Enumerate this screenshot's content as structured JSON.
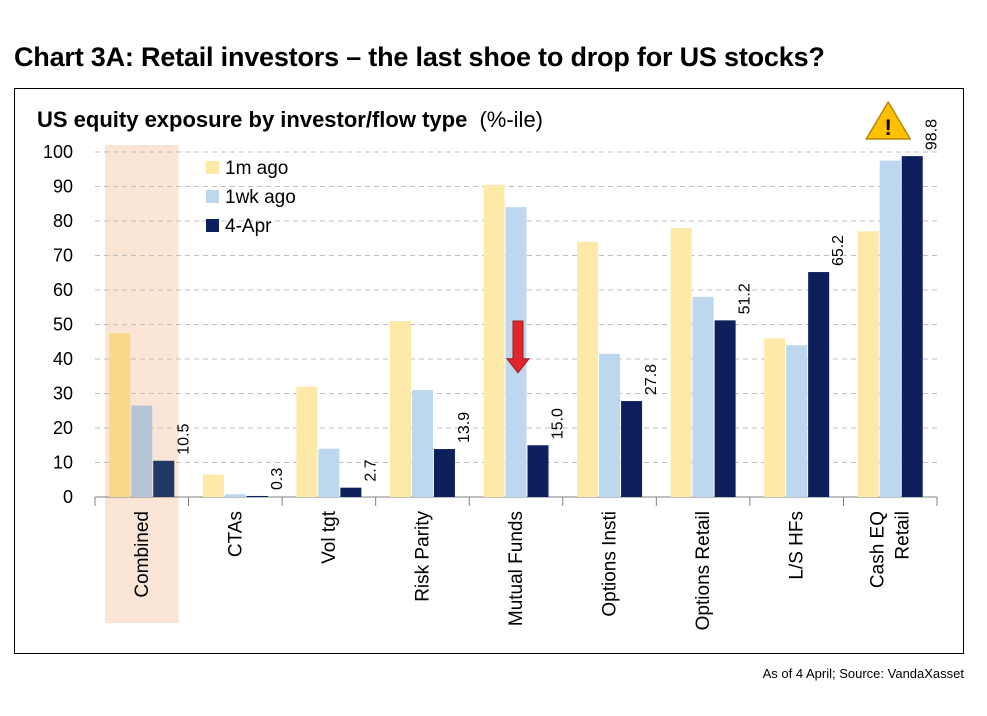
{
  "page": {
    "title": "Chart 3A: Retail investors – the last shoe to drop for US stocks?",
    "source": "As of 4 April; Source: VandaXasset"
  },
  "colors": {
    "s1": "#FDE9A8",
    "s2": "#BDD7EE",
    "s3": "#0D1F5C",
    "combined_s1": "#F9D88A",
    "combined_s2": "#B4C4D6",
    "combined_s3": "#1F3864",
    "highlight": "#FBE5D6",
    "grid": "#BFBFBF",
    "warning": "#FFC000",
    "arrow": "#E0262A"
  },
  "chart_data": {
    "type": "bar",
    "title": "US equity exposure by investor/flow type",
    "title_suffix": "(%-ile)",
    "xlabel": "",
    "ylabel": "",
    "ylim": [
      0,
      100
    ],
    "yticks": [
      0,
      10,
      20,
      30,
      40,
      50,
      60,
      70,
      80,
      90,
      100
    ],
    "grid": true,
    "legend_position": "top-left",
    "categories": [
      [
        "Combined"
      ],
      [
        "CTAs"
      ],
      [
        "Vol tgt"
      ],
      [
        "Risk Parity"
      ],
      [
        "Mutual Funds"
      ],
      [
        "Options Insti"
      ],
      [
        "Options Retail"
      ],
      [
        "L/S HFs"
      ],
      [
        "Cash EQ",
        "Retail"
      ]
    ],
    "highlighted_category": "Combined",
    "series": [
      {
        "name": "1m ago",
        "values": [
          47.5,
          6.5,
          32,
          51,
          90.5,
          74,
          78,
          46,
          77
        ]
      },
      {
        "name": "1wk ago",
        "values": [
          26.5,
          0.8,
          14,
          31,
          84,
          41.5,
          58,
          44,
          97.5
        ]
      },
      {
        "name": "4-Apr",
        "values": [
          10.5,
          0.3,
          2.7,
          13.9,
          15.0,
          27.8,
          51.2,
          65.2,
          98.8
        ],
        "labels": [
          "10.5",
          "0.3",
          "2.7",
          "13.9",
          "15.0",
          "27.8",
          "51.2",
          "65.2",
          "98.8"
        ]
      }
    ],
    "annotations": [
      {
        "type": "down-arrow",
        "category": "Mutual Funds",
        "from": 51,
        "to": 36
      },
      {
        "type": "warning-sign",
        "category": "Cash EQ Retail",
        "glyph": "!"
      }
    ]
  }
}
